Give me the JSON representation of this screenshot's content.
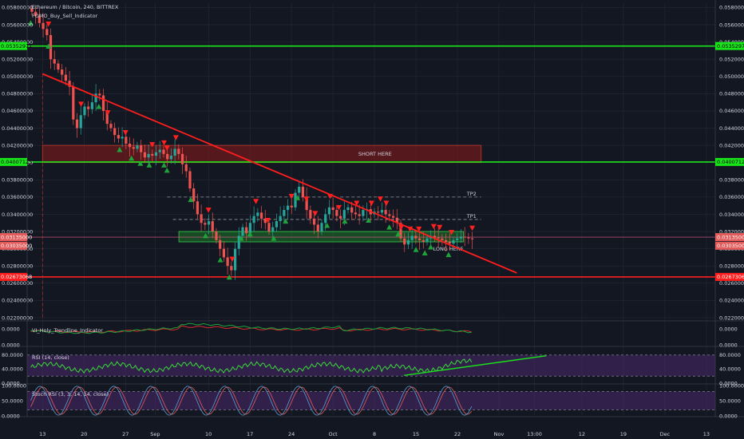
{
  "header": {
    "title": "Ethereum / Bitcoin, 240, BITTREX",
    "indicator": "FOMO_Buy_Sell_Indicator"
  },
  "colors": {
    "background": "#131722",
    "grid": "#262a36",
    "text": "#d1d4dc",
    "bull": "#26a69a",
    "bear": "#ef5350",
    "green_line": "#19e319",
    "red_line": "#ff1e1e",
    "short_zone": "#8b1a1a",
    "long_zone": "#1f8a2a",
    "rsi_band": "#4a2a6b",
    "rsi_line": "#38d938",
    "stoch_k": "#5b9bd5",
    "stoch_d": "#e35b5b",
    "vi_pos": "#19a33c",
    "vi_neg": "#d62b2b"
  },
  "chart_data": {
    "type": "candlestick",
    "main": {
      "ylim": [
        0.022,
        0.0585
      ],
      "ytick_labels": [
        "0.05800000",
        "0.05600000",
        "0.05400000",
        "0.05200000",
        "0.05000000",
        "0.04800000",
        "0.04600000",
        "0.04400000",
        "0.04200000",
        "0.04000000",
        "0.03800000",
        "0.03600000",
        "0.03400000",
        "0.03200000",
        "0.03000000",
        "0.02800000",
        "0.02600000",
        "0.02400000",
        "0.02200000"
      ],
      "ytick_values": [
        0.058,
        0.056,
        0.054,
        0.052,
        0.05,
        0.048,
        0.046,
        0.044,
        0.042,
        0.04,
        0.038,
        0.036,
        0.034,
        0.032,
        0.03,
        0.028,
        0.026,
        0.024,
        0.022
      ],
      "xtick_labels": [
        "13",
        "20",
        "27",
        "Sep",
        "10",
        "17",
        "24",
        "Oct",
        "8",
        "15",
        "22",
        "Nov",
        "13:00",
        "12",
        "19",
        "Dec",
        "13"
      ],
      "xtick_positions": [
        0.0,
        7.0,
        14.0,
        19.0,
        28.0,
        35.0,
        42.0,
        49.0,
        56.0,
        63.0,
        70.0,
        77.0,
        83.0,
        91.0,
        98.0,
        105.0,
        112.0
      ],
      "xlim": [
        -2.6,
        113.5
      ],
      "horizontal_levels": [
        {
          "value": 0.05352971,
          "label": "0.05352971",
          "color": "green"
        },
        {
          "value": 0.04007123,
          "label": "0.04007123",
          "color": "green"
        },
        {
          "value": 0.02673068,
          "label": "0.02673068",
          "color": "red"
        }
      ],
      "price_marker": {
        "value": 0.03135,
        "label": "0.03135000"
      },
      "price_marker2": {
        "value": 0.03035,
        "label": "0.03035000"
      },
      "trendline": {
        "x1": 0.0,
        "y1": 0.0503,
        "x2": 80.0,
        "y2": 0.0272
      },
      "tp_lines": [
        {
          "label": "TP2",
          "value": 0.036,
          "x1": 21.0,
          "x2": 74.0
        },
        {
          "label": "TP1",
          "value": 0.0334,
          "x1": 22.0,
          "x2": 74.0
        }
      ],
      "zones": [
        {
          "label": "SHORT HERE",
          "x1": 0.0,
          "x2": 74.0,
          "y_top": 0.042,
          "y_bottom": 0.04
        },
        {
          "label": "LONG HERE",
          "x1": 23.0,
          "x2": 71.0,
          "y_top": 0.032,
          "y_bottom": 0.0308
        }
      ],
      "close_series": [
        0.0575,
        0.057,
        0.0562,
        0.0555,
        0.0548,
        0.052,
        0.0515,
        0.0508,
        0.0502,
        0.0495,
        0.0488,
        0.045,
        0.044,
        0.0455,
        0.0465,
        0.0462,
        0.047,
        0.048,
        0.0478,
        0.046,
        0.0445,
        0.044,
        0.0432,
        0.0428,
        0.043,
        0.0422,
        0.0418,
        0.0416,
        0.042,
        0.0412,
        0.0406,
        0.041,
        0.0408,
        0.0412,
        0.0415,
        0.041,
        0.0404,
        0.0408,
        0.0416,
        0.041,
        0.0398,
        0.039,
        0.037,
        0.0355,
        0.034,
        0.033,
        0.0328,
        0.0332,
        0.032,
        0.031,
        0.03,
        0.029,
        0.028,
        0.0275,
        0.03,
        0.0315,
        0.0325,
        0.0318,
        0.033,
        0.0338,
        0.0342,
        0.0335,
        0.033,
        0.032,
        0.0325,
        0.0332,
        0.0338,
        0.0345,
        0.035,
        0.0348,
        0.0365,
        0.0372,
        0.036,
        0.0345,
        0.0335,
        0.0328,
        0.032,
        0.033,
        0.034,
        0.0348,
        0.0345,
        0.0338,
        0.0335,
        0.0345,
        0.0348,
        0.0342,
        0.034,
        0.0338,
        0.0345,
        0.0346,
        0.034,
        0.0343,
        0.0342,
        0.0345,
        0.034,
        0.0338,
        0.0336,
        0.033,
        0.0312,
        0.0305,
        0.031,
        0.0315,
        0.0312,
        0.031,
        0.0308,
        0.0312,
        0.0315,
        0.0313,
        0.0312,
        0.031,
        0.0308,
        0.0306,
        0.031,
        0.0312,
        0.0314,
        0.0313,
        0.0312,
        0.0311
      ],
      "sell_signals_x": [
        1.0,
        6.5,
        11.0,
        14.0,
        18.5,
        20.5,
        21.0,
        22.5,
        28.0,
        32.0,
        36.0,
        38.0,
        42.0,
        44.5,
        46.0,
        48.5,
        50.0,
        53.0,
        55.5,
        57.0,
        58.0,
        60.5,
        62.0,
        63.5,
        66.0,
        67.0,
        69.0,
        72.5
      ],
      "buy_signals_x": [
        -2.0,
        1.0,
        9.5,
        13.0,
        15.0,
        16.5,
        18.0,
        20.5,
        21.0,
        25.0,
        27.5,
        30.0,
        31.5,
        33.5,
        35.0,
        39.0,
        41.0,
        43.0,
        48.0,
        51.0,
        55.0,
        58.5,
        60.0,
        63.0,
        64.5,
        65.5,
        68.5
      ]
    },
    "vi": {
      "label": "VI_Holy_Trendline_Indicator",
      "ylim": [
        -0.001,
        0.001
      ],
      "ytick_labels": [
        "0.0000",
        "0.0000"
      ]
    },
    "rsi": {
      "label": "RSI (14, close)",
      "ylim": [
        0,
        100
      ],
      "ytick_labels": [
        "80.0000",
        "40.0000",
        "0.0000"
      ],
      "band": [
        20,
        80
      ],
      "divergence_line": {
        "x1": 61.0,
        "y1": 22.0,
        "x2": 85.0,
        "y2": 78.0
      }
    },
    "stoch": {
      "label": "Stoch RSI (3, 3, 14, 14, close)",
      "ylim": [
        0,
        100
      ],
      "ytick_labels": [
        "100.0000",
        "50.0000",
        "0.0000"
      ],
      "band": [
        20,
        80
      ]
    }
  }
}
